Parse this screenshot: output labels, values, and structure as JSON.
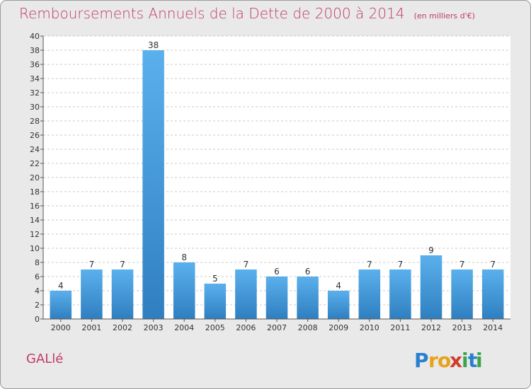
{
  "header": {
    "title": "Remboursements Annuels de la Dette de 2000 à 2014",
    "unit": "(en milliers d'€)"
  },
  "footer": {
    "commune": "GALlé",
    "brand": "Proxiti",
    "brand_letters": [
      {
        "char": "P",
        "color": "#2b7fd0"
      },
      {
        "char": "r",
        "color": "#e8a21a"
      },
      {
        "char": "o",
        "color": "#e8a21a"
      },
      {
        "char": "x",
        "color": "#d23a2e"
      },
      {
        "char": "i",
        "color": "#3aa54a"
      },
      {
        "char": "t",
        "color": "#2b7fd0"
      },
      {
        "char": "i",
        "color": "#3aa54a"
      }
    ]
  },
  "colors": {
    "bar_top": "#5ab0ec",
    "bar_bottom": "#2f7fc0",
    "accent": "#c03a68"
  },
  "chart_data": {
    "type": "bar",
    "title": "Remboursements Annuels de la Dette de 2000 à 2014",
    "subtitle": "(en milliers d'€)",
    "categories": [
      "2000",
      "2001",
      "2002",
      "2003",
      "2004",
      "2005",
      "2006",
      "2007",
      "2008",
      "2009",
      "2010",
      "2011",
      "2012",
      "2013",
      "2014"
    ],
    "values": [
      4,
      7,
      7,
      38,
      8,
      5,
      7,
      6,
      6,
      4,
      7,
      7,
      9,
      7,
      7
    ],
    "ylim": [
      0,
      40
    ],
    "yticks": [
      0,
      2,
      4,
      6,
      8,
      10,
      12,
      14,
      16,
      18,
      20,
      22,
      24,
      26,
      28,
      30,
      32,
      34,
      36,
      38,
      40
    ],
    "grid": true,
    "data_labels": true
  }
}
